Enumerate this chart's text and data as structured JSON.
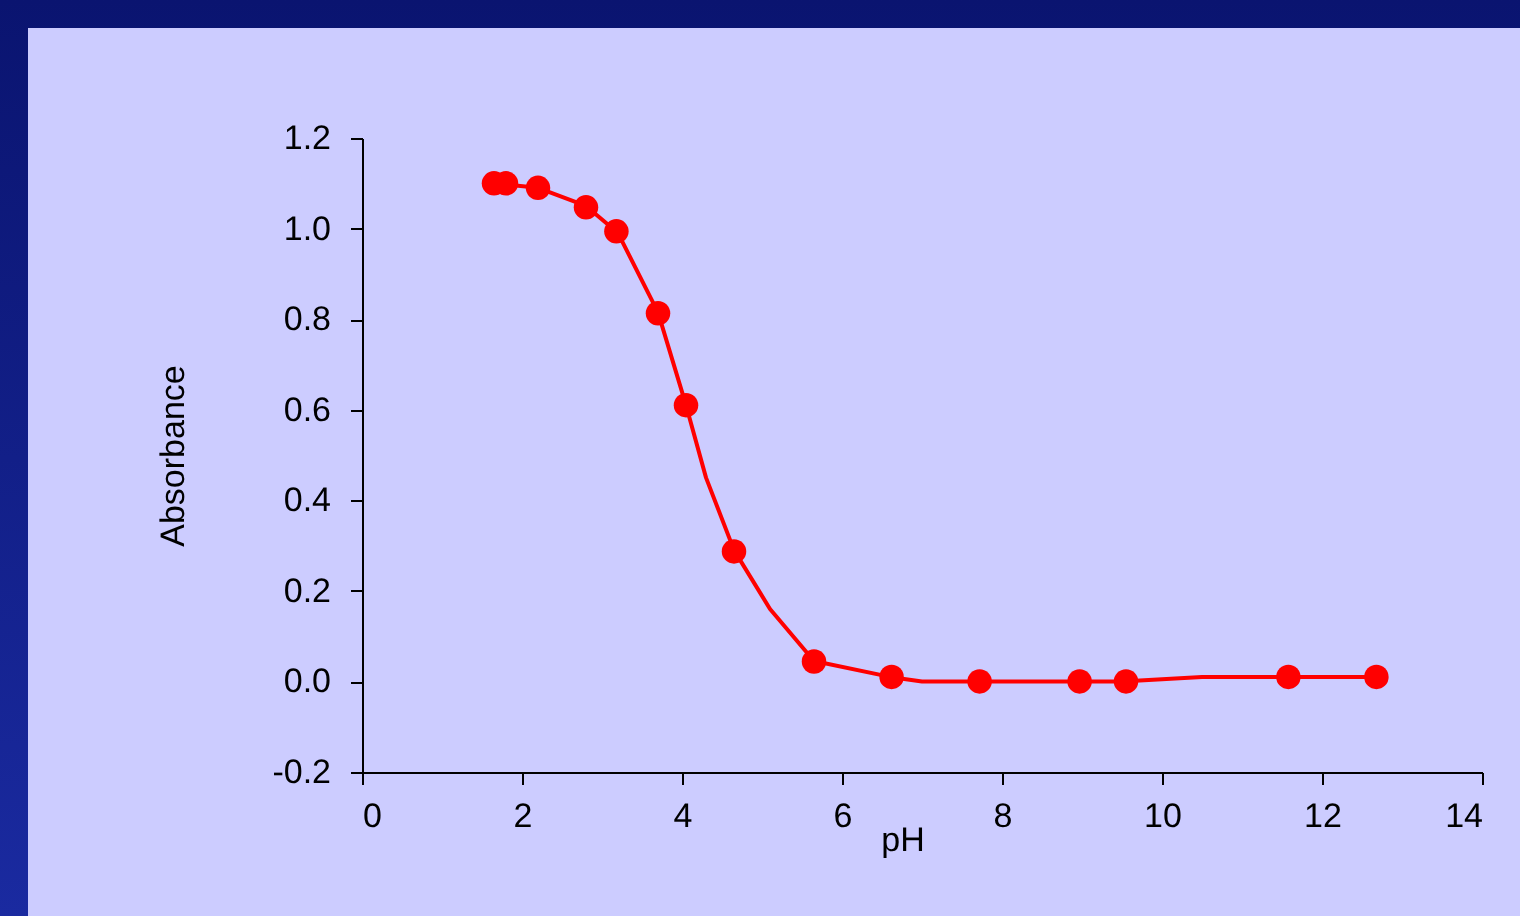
{
  "chart_data": {
    "type": "scatter",
    "xlabel": "pH",
    "ylabel": "Absorbance",
    "xlim": [
      0,
      14
    ],
    "xticks": [
      0,
      2,
      4,
      6,
      8,
      10,
      12,
      14
    ],
    "ylim": [
      -0.2,
      1.2
    ],
    "yticks": [
      {
        "value": -0.2,
        "label": "-0.2"
      },
      {
        "value": 0,
        "label": "0.0"
      },
      0.2,
      0.4,
      0.6,
      0.8,
      {
        "value": 1,
        "label": "1.0"
      },
      1.2
    ],
    "grid": false,
    "marker": "circle",
    "series": [
      {
        "type": "line",
        "color": "#ff0000",
        "line_style": "solid",
        "marker": "none",
        "x": [
          1.65,
          2.2,
          2.8,
          3.2,
          3.7,
          4.05,
          4.3,
          4.65,
          5.1,
          5.65,
          6.6,
          7.0,
          8.0,
          9.5,
          10.5,
          12.7
        ],
        "values": [
          1.1,
          1.09,
          1.05,
          0.99,
          0.815,
          0.61,
          0.45,
          0.29,
          0.16,
          0.045,
          0.01,
          0.0,
          0.0,
          0.0,
          0.01,
          0.01
        ]
      },
      {
        "color": "#ff0000",
        "x": [
          1.65,
          1.8,
          2.2,
          2.8,
          3.18,
          3.7,
          4.05,
          4.65,
          5.65,
          6.62,
          7.72,
          8.97,
          9.55,
          11.58,
          12.68
        ],
        "values": [
          1.1,
          1.1,
          1.09,
          1.047,
          0.994,
          0.813,
          0.61,
          0.287,
          0.044,
          0.01,
          0.0,
          0.0,
          0.0,
          0.01,
          0.01
        ]
      }
    ]
  }
}
